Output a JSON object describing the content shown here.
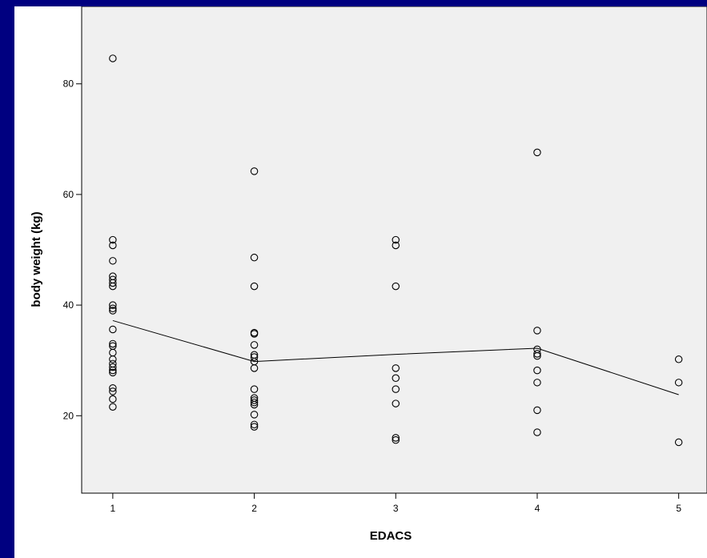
{
  "chart_data": {
    "type": "scatter",
    "title": "",
    "xlabel": "EDACS",
    "ylabel": "body weight (kg)",
    "x_ticks": [
      "1",
      "2",
      "3",
      "4",
      "5"
    ],
    "y_ticks": [
      "20",
      "40",
      "60",
      "80"
    ],
    "xlim": [
      0.78,
      5.2
    ],
    "ylim": [
      6,
      94
    ],
    "grid": false,
    "colors": {
      "plot_bg": "#f0f0f0",
      "point": "#000000",
      "line": "#000000",
      "page_bg": "#000080"
    },
    "series": [
      {
        "type": "scatter",
        "points": [
          [
            1,
            84.6
          ],
          [
            1,
            51.8
          ],
          [
            1,
            50.8
          ],
          [
            1,
            48.0
          ],
          [
            1,
            45.2
          ],
          [
            1,
            44.6
          ],
          [
            1,
            44.0
          ],
          [
            1,
            43.4
          ],
          [
            1,
            40.0
          ],
          [
            1,
            39.4
          ],
          [
            1,
            39.0
          ],
          [
            1,
            35.6
          ],
          [
            1,
            33.0
          ],
          [
            1,
            32.6
          ],
          [
            1,
            31.4
          ],
          [
            1,
            30.2
          ],
          [
            1,
            29.4
          ],
          [
            1,
            28.8
          ],
          [
            1,
            28.2
          ],
          [
            1,
            27.8
          ],
          [
            1,
            25.0
          ],
          [
            1,
            24.4
          ],
          [
            1,
            23.0
          ],
          [
            1,
            21.6
          ],
          [
            2,
            64.2
          ],
          [
            2,
            48.6
          ],
          [
            2,
            43.4
          ],
          [
            2,
            35.0
          ],
          [
            2,
            34.8
          ],
          [
            2,
            32.8
          ],
          [
            2,
            31.0
          ],
          [
            2,
            30.6
          ],
          [
            2,
            29.8
          ],
          [
            2,
            28.6
          ],
          [
            2,
            24.8
          ],
          [
            2,
            23.2
          ],
          [
            2,
            22.8
          ],
          [
            2,
            22.4
          ],
          [
            2,
            22.0
          ],
          [
            2,
            20.2
          ],
          [
            2,
            18.4
          ],
          [
            2,
            18.0
          ],
          [
            3,
            51.8
          ],
          [
            3,
            50.8
          ],
          [
            3,
            43.4
          ],
          [
            3,
            28.6
          ],
          [
            3,
            26.8
          ],
          [
            3,
            24.8
          ],
          [
            3,
            22.2
          ],
          [
            3,
            16.0
          ],
          [
            3,
            15.6
          ],
          [
            4,
            67.6
          ],
          [
            4,
            35.4
          ],
          [
            4,
            32.0
          ],
          [
            4,
            31.2
          ],
          [
            4,
            30.8
          ],
          [
            4,
            28.2
          ],
          [
            4,
            26.0
          ],
          [
            4,
            21.0
          ],
          [
            4,
            17.0
          ],
          [
            5,
            30.2
          ],
          [
            5,
            26.0
          ],
          [
            5,
            15.2
          ]
        ]
      },
      {
        "type": "line",
        "points": [
          [
            1,
            37.2
          ],
          [
            2,
            29.8
          ],
          [
            3,
            31.1
          ],
          [
            4,
            32.2
          ],
          [
            5,
            23.8
          ]
        ]
      }
    ]
  }
}
